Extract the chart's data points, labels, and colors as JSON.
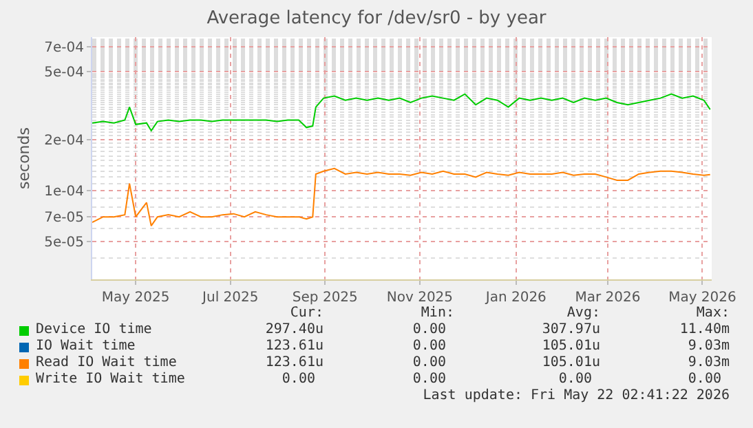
{
  "chart_data": {
    "type": "line",
    "title": "Average latency for /dev/sr0 - by year",
    "ylabel": "seconds",
    "log": "y",
    "grid": true,
    "legend": "bottom",
    "line_style": "solid",
    "marker": "none",
    "xlim": [
      "2025-04-18",
      "2026-05-22"
    ],
    "xticks": [
      {
        "value": "2025-05-16",
        "label": "May 2025"
      },
      {
        "value": "2025-07-16",
        "label": "Jul 2025"
      },
      {
        "value": "2025-09-15",
        "label": "Sep 2025"
      },
      {
        "value": "2025-11-15",
        "label": "Nov 2025"
      },
      {
        "value": "2026-01-16",
        "label": "Jan 2026"
      },
      {
        "value": "2026-03-16",
        "label": "Mar 2026"
      },
      {
        "value": "2026-05-16",
        "label": "May 2026"
      }
    ],
    "ylim": [
      3e-05,
      0.0008
    ],
    "yticks": [
      {
        "value": 5e-05,
        "label": "5e-05"
      },
      {
        "value": 7e-05,
        "label": "7e-05"
      },
      {
        "value": 0.0001,
        "label": "1e-04"
      },
      {
        "value": 0.0002,
        "label": "2e-04"
      },
      {
        "value": 0.0005,
        "label": "5e-04"
      },
      {
        "value": 0.0007,
        "label": "7e-04"
      }
    ],
    "x": [
      "2025-04-18",
      "2025-04-25",
      "2025-05-02",
      "2025-05-09",
      "2025-05-12",
      "2025-05-16",
      "2025-05-23",
      "2025-05-26",
      "2025-05-30",
      "2025-06-06",
      "2025-06-13",
      "2025-06-20",
      "2025-06-27",
      "2025-07-04",
      "2025-07-11",
      "2025-07-18",
      "2025-07-25",
      "2025-08-01",
      "2025-08-08",
      "2025-08-15",
      "2025-08-22",
      "2025-08-29",
      "2025-09-03",
      "2025-09-07",
      "2025-09-09",
      "2025-09-14",
      "2025-09-21",
      "2025-09-28",
      "2025-10-05",
      "2025-10-12",
      "2025-10-19",
      "2025-10-26",
      "2025-11-02",
      "2025-11-09",
      "2025-11-16",
      "2025-11-23",
      "2025-11-30",
      "2025-12-07",
      "2025-12-14",
      "2025-12-21",
      "2025-12-28",
      "2026-01-04",
      "2026-01-11",
      "2026-01-18",
      "2026-01-25",
      "2026-02-01",
      "2026-02-08",
      "2026-02-15",
      "2026-02-22",
      "2026-03-01",
      "2026-03-08",
      "2026-03-15",
      "2026-03-22",
      "2026-03-29",
      "2026-04-05",
      "2026-04-12",
      "2026-04-19",
      "2026-04-26",
      "2026-05-03",
      "2026-05-10",
      "2026-05-17",
      "2026-05-21"
    ],
    "series": [
      {
        "name": "Device IO time",
        "color": "#00cc00",
        "values": [
          0.00025,
          0.000255,
          0.00025,
          0.00026,
          0.00031,
          0.000245,
          0.00025,
          0.000225,
          0.000255,
          0.00026,
          0.000255,
          0.00026,
          0.00026,
          0.000255,
          0.00026,
          0.00026,
          0.00026,
          0.00026,
          0.00026,
          0.000255,
          0.00026,
          0.00026,
          0.000235,
          0.00024,
          0.00031,
          0.00035,
          0.00036,
          0.00034,
          0.00035,
          0.00034,
          0.00035,
          0.00034,
          0.00035,
          0.00033,
          0.00035,
          0.00036,
          0.00035,
          0.00034,
          0.00037,
          0.00032,
          0.00035,
          0.00034,
          0.00031,
          0.00035,
          0.00034,
          0.00035,
          0.00034,
          0.00035,
          0.00033,
          0.00035,
          0.00034,
          0.00035,
          0.00033,
          0.00032,
          0.00033,
          0.00034,
          0.00035,
          0.00037,
          0.00035,
          0.00036,
          0.00034,
          0.0003
        ]
      },
      {
        "name": "IO Wait time",
        "color": "#0066b3",
        "values": [
          null,
          null,
          null,
          null,
          null,
          null,
          null,
          null,
          null,
          null,
          null,
          null,
          null,
          null,
          null,
          null,
          null,
          null,
          null,
          null,
          null,
          null,
          null,
          null,
          null,
          null,
          null,
          null,
          null,
          null,
          null,
          null,
          null,
          null,
          null,
          null,
          null,
          null,
          null,
          null,
          null,
          null,
          null,
          null,
          null,
          null,
          null,
          null,
          null,
          null,
          null,
          null,
          null,
          null,
          null,
          null,
          null,
          null,
          null,
          null,
          null,
          null
        ]
      },
      {
        "name": "Read IO Wait time",
        "color": "#ff8000",
        "values": [
          6.5e-05,
          7e-05,
          7e-05,
          7.2e-05,
          0.00011,
          7e-05,
          8.5e-05,
          6.2e-05,
          7e-05,
          7.2e-05,
          7e-05,
          7.5e-05,
          7e-05,
          7e-05,
          7.2e-05,
          7.3e-05,
          7e-05,
          7.5e-05,
          7.2e-05,
          7e-05,
          7e-05,
          7e-05,
          6.8e-05,
          7e-05,
          0.000125,
          0.00013,
          0.000135,
          0.000125,
          0.000128,
          0.000125,
          0.000128,
          0.000125,
          0.000125,
          0.000123,
          0.000128,
          0.000125,
          0.00013,
          0.000125,
          0.000125,
          0.00012,
          0.000128,
          0.000125,
          0.000123,
          0.000128,
          0.000125,
          0.000125,
          0.000125,
          0.000128,
          0.000123,
          0.000125,
          0.000125,
          0.00012,
          0.000115,
          0.000115,
          0.000125,
          0.000128,
          0.00013,
          0.00013,
          0.000128,
          0.000125,
          0.000123,
          0.000124
        ]
      },
      {
        "name": "Write IO Wait time",
        "color": "#ffcc00",
        "values": [
          null,
          null,
          null,
          null,
          null,
          null,
          null,
          null,
          null,
          null,
          null,
          null,
          null,
          null,
          null,
          null,
          null,
          null,
          null,
          null,
          null,
          null,
          null,
          null,
          null,
          null,
          null,
          null,
          null,
          null,
          null,
          null,
          null,
          null,
          null,
          null,
          null,
          null,
          null,
          null,
          null,
          null,
          null,
          null,
          null,
          null,
          null,
          null,
          null,
          null,
          null,
          null,
          null,
          null,
          null,
          null,
          null,
          null,
          null,
          null,
          null,
          null
        ]
      }
    ],
    "annotations": [
      "Cur:",
      "Min:",
      "Avg:",
      "Max:",
      "297.40u",
      "0.00",
      "307.97u",
      "11.40m",
      "123.61u",
      "0.00",
      "105.01u",
      "9.03m",
      "123.61u",
      "0.00",
      "105.01u",
      "9.03m",
      "0.00",
      "0.00",
      "0.00",
      "0.00",
      "Last update: Fri May 22 02:41:22 2026"
    ]
  }
}
